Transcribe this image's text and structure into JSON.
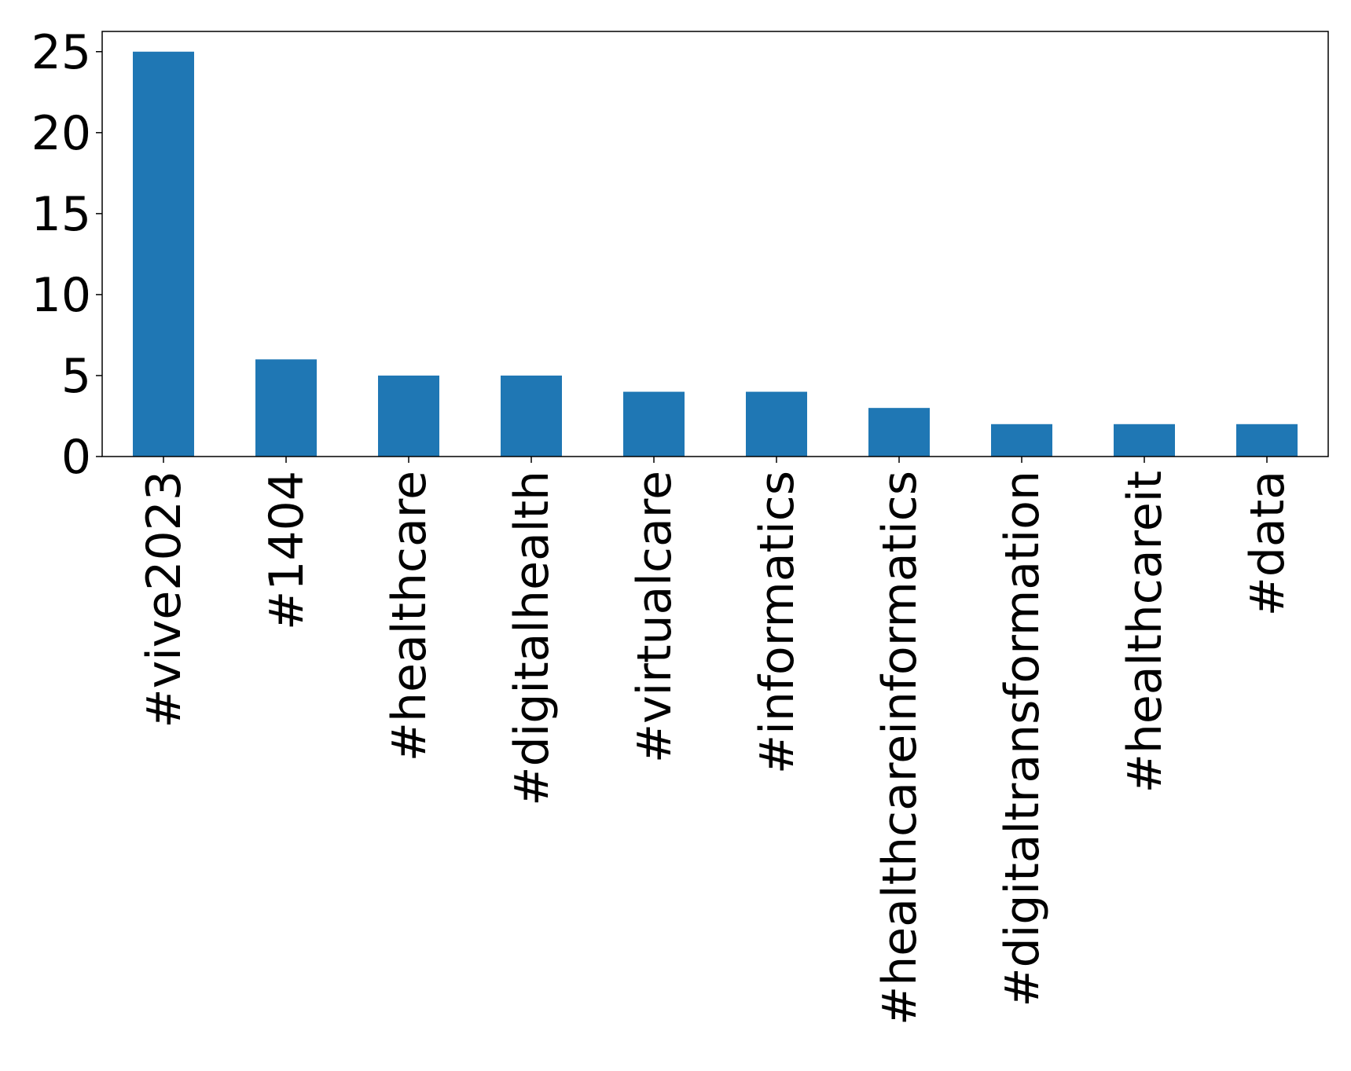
{
  "chart_data": {
    "type": "bar",
    "title": "",
    "xlabel": "",
    "ylabel": "",
    "categories": [
      "#vive2023",
      "#1404",
      "#healthcare",
      "#digitalhealth",
      "#virtualcare",
      "#informatics",
      "#healthcareinformatics",
      "#digitaltransformation",
      "#healthcareit",
      "#data"
    ],
    "values": [
      25,
      6,
      5,
      5,
      4,
      4,
      3,
      2,
      2,
      2
    ],
    "ylim": [
      0,
      26.25
    ],
    "yticks": [
      0,
      5,
      10,
      15,
      20,
      25
    ],
    "x_tick_rotation": "vertical",
    "grid": false,
    "legend": "none",
    "bar_color": "#1f77b4"
  }
}
